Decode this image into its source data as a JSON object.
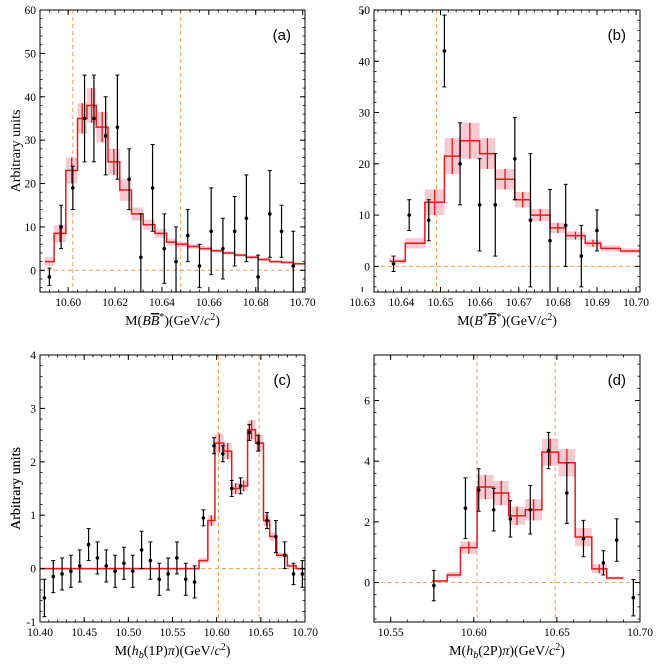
{
  "colors": {
    "data": "#000000",
    "fit": "#e41a1c",
    "band": "#f4b8c3",
    "guide": "#f0a050"
  },
  "chart_data": [
    {
      "panel": "(a)",
      "type": "scatter",
      "xlabel_parts": [
        {
          "t": "M(",
          "s": ""
        },
        {
          "t": "B",
          "s": "i"
        },
        {
          "t": "B",
          "s": "io"
        },
        {
          "t": "*",
          "s": "sup"
        },
        {
          "t": ")(GeV/",
          "s": ""
        },
        {
          "t": "c",
          "s": "i"
        },
        {
          "t": "2",
          "s": "sup"
        },
        {
          "t": ")",
          "s": ""
        }
      ],
      "ylabel": "Arbitrary units",
      "xlim": [
        10.588,
        10.701
      ],
      "ylim": [
        -5,
        60
      ],
      "xticks": [
        10.6,
        10.62,
        10.64,
        10.66,
        10.68,
        10.7
      ],
      "xtick_labels": [
        "10.60",
        "10.62",
        "10.64",
        "10.66",
        "10.68",
        "10.70"
      ],
      "yticks": [
        0,
        10,
        20,
        30,
        40,
        50,
        60
      ],
      "ytick_labels": [
        "0",
        "10",
        "20",
        "30",
        "40",
        "50",
        "60"
      ],
      "vlines": [
        10.602,
        10.648
      ],
      "points": [
        {
          "x": 10.592,
          "y": -1.5,
          "e": 2
        },
        {
          "x": 10.597,
          "y": 10,
          "e": 5
        },
        {
          "x": 10.602,
          "y": 19,
          "e": 5
        },
        {
          "x": 10.607,
          "y": 35,
          "e": 10
        },
        {
          "x": 10.611,
          "y": 35,
          "e": 10
        },
        {
          "x": 10.616,
          "y": 31,
          "e": 9
        },
        {
          "x": 10.621,
          "y": 33,
          "e": 12
        },
        {
          "x": 10.626,
          "y": 21,
          "e": 7
        },
        {
          "x": 10.631,
          "y": 3,
          "e": 10
        },
        {
          "x": 10.636,
          "y": 19,
          "e": 10
        },
        {
          "x": 10.641,
          "y": 5,
          "e": 8
        },
        {
          "x": 10.646,
          "y": 2,
          "e": 8
        },
        {
          "x": 10.651,
          "y": 8,
          "e": 6
        },
        {
          "x": 10.656,
          "y": 1,
          "e": 5
        },
        {
          "x": 10.661,
          "y": 9,
          "e": 10
        },
        {
          "x": 10.666,
          "y": 5,
          "e": 7
        },
        {
          "x": 10.671,
          "y": 9,
          "e": 8
        },
        {
          "x": 10.676,
          "y": 12,
          "e": 10
        },
        {
          "x": 10.681,
          "y": -1.5,
          "e": 5
        },
        {
          "x": 10.686,
          "y": 13,
          "e": 10
        },
        {
          "x": 10.691,
          "y": 9,
          "e": 6
        },
        {
          "x": 10.696,
          "y": 1,
          "e": 8
        }
      ],
      "fit": {
        "edges": [
          10.59,
          10.594,
          10.599,
          10.604,
          10.608,
          10.612,
          10.617,
          10.622,
          10.627,
          10.632,
          10.637,
          10.642,
          10.646,
          10.651,
          10.656,
          10.661,
          10.666,
          10.671,
          10.676,
          10.681,
          10.686,
          10.691,
          10.696,
          10.701
        ],
        "values": [
          2,
          8.5,
          23,
          35,
          38,
          33,
          25,
          18.5,
          13,
          10.5,
          8.5,
          6.5,
          6,
          5.5,
          5,
          4.5,
          4,
          3.5,
          3,
          2.5,
          2,
          1.8,
          1.5
        ],
        "band": [
          1,
          2,
          3,
          3.5,
          4,
          3.5,
          3,
          2.5,
          1.5,
          1.2,
          1,
          0.8,
          0.6,
          0.5,
          0.5,
          0.4,
          0.4,
          0.4,
          0.4,
          0.4,
          0.3,
          0.3,
          0.3
        ],
        "crosses": [
          1,
          2,
          3,
          4,
          5,
          6
        ]
      }
    },
    {
      "panel": "(b)",
      "type": "scatter",
      "xlabel_parts": [
        {
          "t": "M(",
          "s": ""
        },
        {
          "t": "B",
          "s": "i"
        },
        {
          "t": "*",
          "s": "sup"
        },
        {
          "t": "B",
          "s": "io"
        },
        {
          "t": "*",
          "s": "sup"
        },
        {
          "t": ")(GeV/",
          "s": ""
        },
        {
          "t": "c",
          "s": "i"
        },
        {
          "t": "2",
          "s": "sup"
        },
        {
          "t": ")",
          "s": ""
        }
      ],
      "ylabel": "",
      "xlim": [
        10.633,
        10.701
      ],
      "ylim": [
        -5,
        50
      ],
      "xticks": [
        10.63,
        10.64,
        10.65,
        10.66,
        10.67,
        10.68,
        10.69,
        10.7
      ],
      "xtick_labels": [
        "10.63",
        "10.64",
        "10.65",
        "10.66",
        "10.67",
        "10.68",
        "10.69",
        "10.70"
      ],
      "yticks": [
        0,
        10,
        20,
        30,
        40,
        50
      ],
      "ytick_labels": [
        "0",
        "10",
        "20",
        "30",
        "40",
        "50"
      ],
      "vlines": [
        10.649
      ],
      "points": [
        {
          "x": 10.638,
          "y": 0.5,
          "e": 1.5
        },
        {
          "x": 10.642,
          "y": 10,
          "e": 3
        },
        {
          "x": 10.647,
          "y": 9,
          "e": 4
        },
        {
          "x": 10.651,
          "y": 42,
          "e": 7
        },
        {
          "x": 10.655,
          "y": 20,
          "e": 8
        },
        {
          "x": 10.66,
          "y": 12,
          "e": 9
        },
        {
          "x": 10.664,
          "y": 12,
          "e": 10
        },
        {
          "x": 10.669,
          "y": 21,
          "e": 8
        },
        {
          "x": 10.673,
          "y": 9,
          "e": 13
        },
        {
          "x": 10.678,
          "y": 5,
          "e": 10
        },
        {
          "x": 10.682,
          "y": 8,
          "e": 8
        },
        {
          "x": 10.686,
          "y": 2,
          "e": 6
        },
        {
          "x": 10.69,
          "y": 7,
          "e": 4
        }
      ],
      "fit": {
        "edges": [
          10.637,
          10.641,
          10.646,
          10.651,
          10.655,
          10.66,
          10.664,
          10.669,
          10.673,
          10.678,
          10.682,
          10.687,
          10.691,
          10.696,
          10.701
        ],
        "values": [
          1,
          4.5,
          12.5,
          21.5,
          24.5,
          22,
          17,
          13,
          10,
          7.5,
          6,
          4.5,
          3.5,
          3
        ],
        "band": [
          0.5,
          1,
          2.5,
          3.5,
          3.5,
          3,
          2,
          1.5,
          1.2,
          1,
          0.8,
          0.7,
          0.6,
          0.5
        ],
        "crosses": [
          2,
          3,
          4,
          5,
          6,
          7,
          8,
          9,
          10,
          11
        ]
      }
    },
    {
      "panel": "(c)",
      "type": "scatter",
      "xlabel_parts": [
        {
          "t": "M(",
          "s": ""
        },
        {
          "t": "h",
          "s": "i"
        },
        {
          "t": "b",
          "s": "subi"
        },
        {
          "t": "(1P)",
          "s": ""
        },
        {
          "t": "π",
          "s": "i"
        },
        {
          "t": ")(GeV/",
          "s": ""
        },
        {
          "t": "c",
          "s": "i"
        },
        {
          "t": "2",
          "s": "sup"
        },
        {
          "t": ")",
          "s": ""
        }
      ],
      "ylabel": "Arbitrary units",
      "xlim": [
        10.4,
        10.7
      ],
      "ylim": [
        -1,
        4
      ],
      "xticks": [
        10.4,
        10.45,
        10.5,
        10.55,
        10.6,
        10.65,
        10.7
      ],
      "xtick_labels": [
        "10.40",
        "10.45",
        "10.50",
        "10.55",
        "10.60",
        "10.65",
        "10.70"
      ],
      "yticks": [
        -1,
        0,
        1,
        2,
        3,
        4
      ],
      "ytick_labels": [
        "-1",
        "0",
        "1",
        "2",
        "3",
        "4"
      ],
      "vlines": [
        10.602,
        10.648
      ],
      "points": [
        {
          "x": 10.405,
          "y": -0.55,
          "e": 0.35
        },
        {
          "x": 10.415,
          "y": -0.15,
          "e": 0.3
        },
        {
          "x": 10.425,
          "y": -0.1,
          "e": 0.3
        },
        {
          "x": 10.435,
          "y": -0.05,
          "e": 0.3
        },
        {
          "x": 10.445,
          "y": 0.05,
          "e": 0.3
        },
        {
          "x": 10.455,
          "y": 0.45,
          "e": 0.3
        },
        {
          "x": 10.465,
          "y": 0.2,
          "e": 0.3
        },
        {
          "x": 10.475,
          "y": 0.05,
          "e": 0.3
        },
        {
          "x": 10.485,
          "y": -0.05,
          "e": 0.3
        },
        {
          "x": 10.495,
          "y": 0.1,
          "e": 0.3
        },
        {
          "x": 10.505,
          "y": -0.05,
          "e": 0.3
        },
        {
          "x": 10.515,
          "y": 0.35,
          "e": 0.35
        },
        {
          "x": 10.525,
          "y": 0.15,
          "e": 0.35
        },
        {
          "x": 10.535,
          "y": -0.2,
          "e": 0.3
        },
        {
          "x": 10.545,
          "y": -0.1,
          "e": 0.3
        },
        {
          "x": 10.555,
          "y": 0.2,
          "e": 0.3
        },
        {
          "x": 10.565,
          "y": -0.2,
          "e": 0.3
        },
        {
          "x": 10.575,
          "y": -0.25,
          "e": 0.3
        },
        {
          "x": 10.585,
          "y": 0.95,
          "e": 0.15
        },
        {
          "x": 10.597,
          "y": 2.3,
          "e": 0.15
        },
        {
          "x": 10.607,
          "y": 2.15,
          "e": 0.15
        },
        {
          "x": 10.617,
          "y": 1.5,
          "e": 0.15
        },
        {
          "x": 10.627,
          "y": 1.55,
          "e": 0.15
        },
        {
          "x": 10.637,
          "y": 2.55,
          "e": 0.15
        },
        {
          "x": 10.647,
          "y": 2.35,
          "e": 0.15
        },
        {
          "x": 10.657,
          "y": 0.9,
          "e": 0.15
        },
        {
          "x": 10.667,
          "y": 0.6,
          "e": 0.3
        },
        {
          "x": 10.677,
          "y": 0.25,
          "e": 0.25
        },
        {
          "x": 10.687,
          "y": -0.1,
          "e": 0.2
        },
        {
          "x": 10.697,
          "y": -0.1,
          "e": 0.25
        }
      ],
      "fit": {
        "edges": [
          10.4,
          10.58,
          10.59,
          10.598,
          10.608,
          10.617,
          10.626,
          10.635,
          10.644,
          10.653,
          10.66,
          10.668,
          10.68,
          10.69,
          10.7
        ],
        "values": [
          0,
          0.15,
          0.9,
          2.35,
          2.2,
          1.5,
          1.55,
          2.6,
          2.35,
          0.9,
          0.6,
          0.25,
          0.05,
          0
        ],
        "band": [
          0.02,
          0.05,
          0.1,
          0.18,
          0.15,
          0.1,
          0.1,
          0.18,
          0.15,
          0.1,
          0.08,
          0.05,
          0.03,
          0.02
        ],
        "crosses": [
          2,
          3,
          4,
          5,
          6,
          7,
          8,
          9
        ]
      }
    },
    {
      "panel": "(d)",
      "type": "scatter",
      "xlabel_parts": [
        {
          "t": "M(",
          "s": ""
        },
        {
          "t": "h",
          "s": "i"
        },
        {
          "t": "b",
          "s": "subi"
        },
        {
          "t": "(2P)",
          "s": ""
        },
        {
          "t": "π",
          "s": "i"
        },
        {
          "t": ")(GeV/",
          "s": ""
        },
        {
          "t": "c",
          "s": "i"
        },
        {
          "t": "2",
          "s": "sup"
        },
        {
          "t": ")",
          "s": ""
        }
      ],
      "ylabel": "Arbitrary units",
      "xlim": [
        10.54,
        10.7
      ],
      "ylim": [
        -1.3,
        7.5
      ],
      "xticks": [
        10.55,
        10.6,
        10.65,
        10.7
      ],
      "xtick_labels": [
        "10.55",
        "10.60",
        "10.65",
        "10.70"
      ],
      "yticks": [
        0,
        2,
        4,
        6
      ],
      "ytick_labels": [
        "0",
        "2",
        "4",
        "6"
      ],
      "vlines": [
        10.602,
        10.649
      ],
      "points": [
        {
          "x": 10.576,
          "y": -0.1,
          "e": 0.5
        },
        {
          "x": 10.595,
          "y": 2.45,
          "e": 1.0
        },
        {
          "x": 10.603,
          "y": 3.05,
          "e": 0.7
        },
        {
          "x": 10.612,
          "y": 2.4,
          "e": 0.7
        },
        {
          "x": 10.622,
          "y": 2.1,
          "e": 0.6
        },
        {
          "x": 10.634,
          "y": 2.4,
          "e": 0.8
        },
        {
          "x": 10.645,
          "y": 4.35,
          "e": 0.6
        },
        {
          "x": 10.656,
          "y": 2.95,
          "e": 1.0
        },
        {
          "x": 10.666,
          "y": 1.45,
          "e": 0.6
        },
        {
          "x": 10.678,
          "y": 0.65,
          "e": 0.4
        },
        {
          "x": 10.686,
          "y": 1.4,
          "e": 0.7
        },
        {
          "x": 10.696,
          "y": -0.5,
          "e": 0.6
        }
      ],
      "fit": {
        "edges": [
          10.575,
          10.584,
          10.592,
          10.602,
          10.612,
          10.621,
          10.631,
          10.641,
          10.651,
          10.661,
          10.671,
          10.68,
          10.69
        ],
        "values": [
          0.05,
          0.25,
          1.15,
          3.15,
          2.95,
          2.2,
          2.4,
          4.3,
          3.95,
          1.5,
          0.45,
          0.15
        ],
        "band": [
          0.05,
          0.1,
          0.2,
          0.4,
          0.4,
          0.3,
          0.35,
          0.45,
          0.45,
          0.3,
          0.15,
          0.05
        ],
        "crosses": [
          2,
          3,
          4,
          5,
          6,
          7,
          8,
          9,
          10
        ]
      }
    }
  ]
}
